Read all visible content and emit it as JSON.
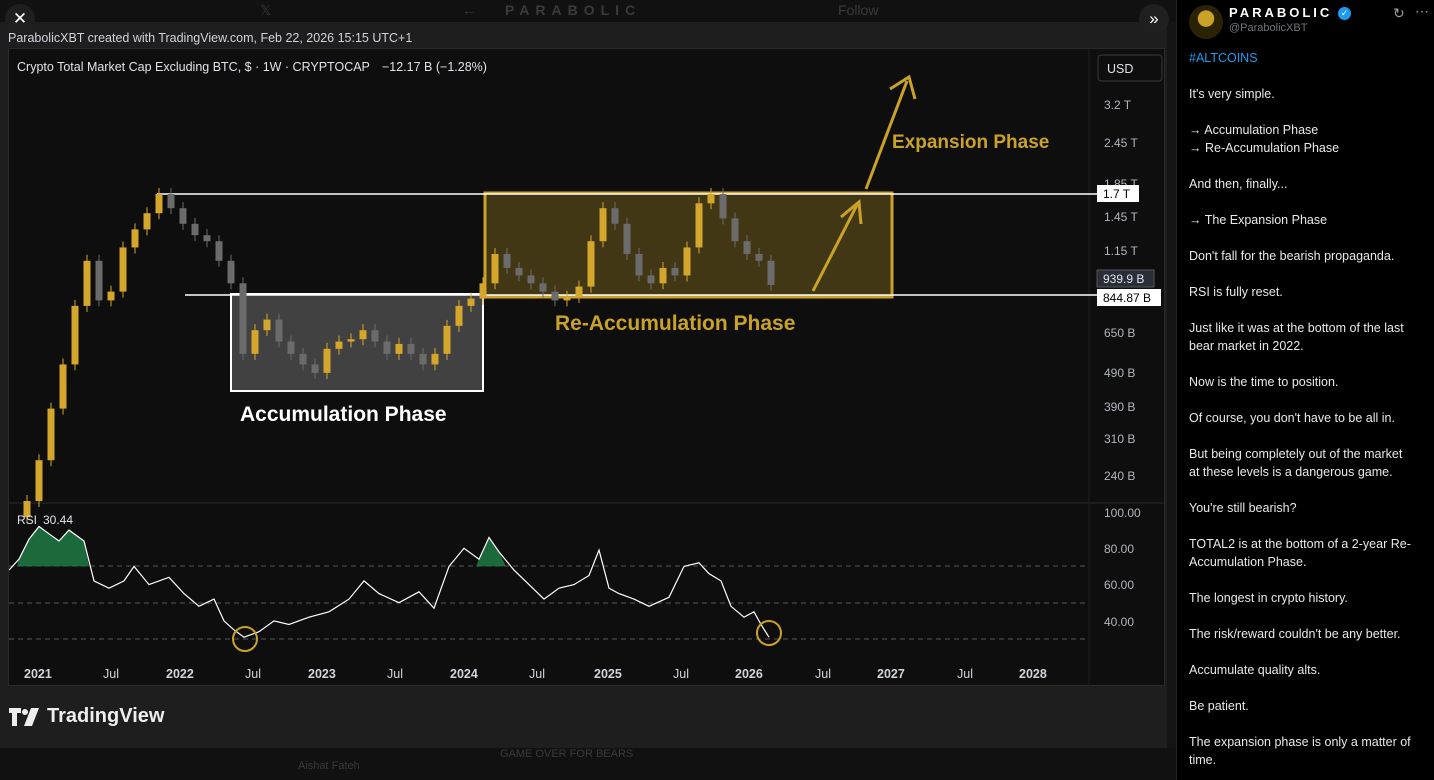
{
  "viewer": {
    "credit": "ParabolicXBT created with TradingView.com, Feb 22, 2026 15:15 UTC+1",
    "logo_text": "TradingView",
    "bg_title": "PARABOLIC",
    "bg_follow": "Follow",
    "bg_bottom_name": "Aishat Fateh",
    "bg_bottom_text": "GAME OVER FOR BEARS"
  },
  "chart_header": {
    "symbol": "Crypto Total Market Cap Excluding BTC, $ · 1W · CRYPTOCAP",
    "change": "−12.17 B (−1.28%)",
    "currency": "USD"
  },
  "colors": {
    "accent_gold": "#c9a227",
    "candle_up": "#d4a72c",
    "candle_down": "#6b6b6b",
    "rsi_line": "#ffffff",
    "rsi_fill": "#1f7a44"
  },
  "annotations": {
    "accumulation": "Accumulation Phase",
    "reaccumulation": "Re-Accumulation Phase",
    "expansion": "Expansion Phase"
  },
  "price_labels": {
    "top": "1.7 T",
    "current": "939.9 B",
    "bottom": "844.87 B"
  },
  "rsi": {
    "label": "RSI",
    "value": "30.44"
  },
  "chart_data": {
    "type": "line",
    "title": "Crypto Total Market Cap Excluding BTC, $ · 1W · CRYPTOCAP",
    "y_scale": "log",
    "y_ticks": [
      "3.2 T",
      "2.45 T",
      "1.85 T",
      "1.45 T",
      "1.15 T",
      "939.9 B",
      "650 B",
      "490 B",
      "390 B",
      "310 B",
      "240 B"
    ],
    "x_ticks": [
      "2021",
      "Jul",
      "2022",
      "Jul",
      "2023",
      "Jul",
      "2024",
      "Jul",
      "2025",
      "Jul",
      "2026",
      "Jul",
      "2027",
      "Jul",
      "2028"
    ],
    "rsi_ticks": [
      "100.00",
      "80.00",
      "60.00",
      "40.00"
    ],
    "series": [
      {
        "x": [
          "2020-12",
          "2021-01",
          "2021-02",
          "2021-03",
          "2021-04",
          "2021-05",
          "2021-06",
          "2021-07",
          "2021-08",
          "2021-09",
          "2021-10",
          "2021-11",
          "2021-12",
          "2022-01",
          "2022-02",
          "2022-03",
          "2022-04",
          "2022-05",
          "2022-06",
          "2022-07",
          "2022-08",
          "2022-09",
          "2022-10",
          "2022-11",
          "2022-12",
          "2023-01",
          "2023-02",
          "2023-03",
          "2023-04",
          "2023-05",
          "2023-06",
          "2023-07",
          "2023-08",
          "2023-09",
          "2023-10",
          "2023-11",
          "2023-12",
          "2024-01",
          "2024-02",
          "2024-03",
          "2024-04",
          "2024-05",
          "2024-06",
          "2024-07",
          "2024-08",
          "2024-09",
          "2024-10",
          "2024-11",
          "2024-12",
          "2025-01",
          "2025-02",
          "2025-03",
          "2025-04",
          "2025-05",
          "2025-06",
          "2025-07",
          "2025-08",
          "2025-09",
          "2025-10",
          "2025-11",
          "2025-12",
          "2026-01",
          "2026-02"
        ],
        "values": [
          230,
          300,
          420,
          560,
          820,
          1100,
          850,
          900,
          1200,
          1350,
          1500,
          1700,
          1550,
          1400,
          1300,
          1250,
          1100,
          950,
          600,
          700,
          750,
          650,
          600,
          560,
          530,
          620,
          650,
          660,
          700,
          650,
          600,
          640,
          600,
          560,
          600,
          720,
          820,
          860,
          950,
          1150,
          1050,
          1000,
          950,
          900,
          850,
          870,
          930,
          1250,
          1550,
          1400,
          1150,
          1000,
          950,
          1050,
          1000,
          1200,
          1600,
          1700,
          1450,
          1250,
          1150,
          1100,
          940
        ]
      }
    ]
  }
}
